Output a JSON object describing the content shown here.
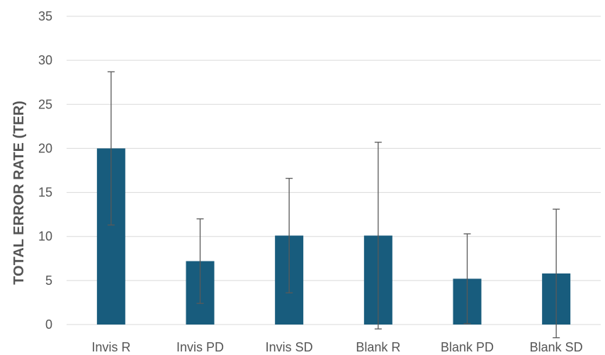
{
  "chart_data": {
    "type": "bar",
    "title": "",
    "xlabel": "",
    "ylabel": "TOTAL ERROR RATE (TER)",
    "categories": [
      "Invis R",
      "Invis PD",
      "Invis SD",
      "Blank R",
      "Blank PD",
      "Blank SD"
    ],
    "values": [
      20,
      7.2,
      10.1,
      10.1,
      5.2,
      5.8
    ],
    "error_plus_minus": [
      8.7,
      4.8,
      6.5,
      10.6,
      5.1,
      7.3
    ],
    "yticks": [
      0,
      5,
      10,
      15,
      20,
      25,
      30,
      35
    ],
    "ylim": [
      0,
      35
    ],
    "grid": true,
    "legend": "none",
    "colors": {
      "bar": "#185c7d",
      "error_bar": "#595959",
      "grid": "#d9d9d9",
      "text": "#595959"
    }
  }
}
